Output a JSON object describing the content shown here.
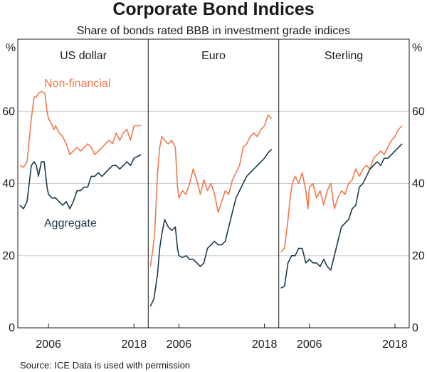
{
  "chart_data": {
    "type": "line",
    "title": "Corporate Bond Indices",
    "subtitle": "Share of bonds rated BBB in investment grade indices",
    "ylabel_left": "%",
    "ylabel_right": "%",
    "ylim": [
      0,
      80
    ],
    "yticks": [
      0,
      20,
      40,
      60
    ],
    "xlim": [
      2002.0,
      2019.7
    ],
    "xticks": [
      2006,
      2018
    ],
    "grid": true,
    "colors": {
      "Non-financial": "#f3784b",
      "Aggregate": "#1b3a4b"
    },
    "series_labels": {
      "nonfin": "Non-financial",
      "agg": "Aggregate"
    },
    "source": "Source:   ICE Data is used with permission",
    "panels": [
      {
        "title": "US dollar",
        "series": [
          {
            "name": "Non-financial",
            "x": [
              2002.0,
              2002.5,
              2003.0,
              2003.3,
              2003.6,
              2004.0,
              2004.3,
              2004.6,
              2005.0,
              2005.5,
              2005.8,
              2006.0,
              2006.3,
              2006.8,
              2007.0,
              2007.5,
              2008.0,
              2008.5,
              2009.0,
              2009.5,
              2010.0,
              2010.5,
              2011.0,
              2011.5,
              2012.0,
              2012.5,
              2013.0,
              2013.5,
              2014.0,
              2014.5,
              2015.0,
              2015.5,
              2016.0,
              2016.5,
              2017.0,
              2017.5,
              2018.0,
              2018.5,
              2019.0
            ],
            "y": [
              45,
              44.5,
              46,
              52,
              58,
              64,
              64,
              65,
              65.5,
              65,
              60,
              58,
              57,
              55,
              56,
              54,
              53,
              51,
              48,
              49,
              50,
              49,
              50,
              51,
              50,
              48,
              49,
              50,
              51,
              52,
              51,
              54,
              52,
              54,
              55,
              52,
              56,
              56,
              56
            ]
          },
          {
            "name": "Aggregate",
            "x": [
              2002.0,
              2002.5,
              2003.0,
              2003.3,
              2003.6,
              2004.0,
              2004.3,
              2004.6,
              2005.0,
              2005.4,
              2005.8,
              2006.0,
              2006.5,
              2007.0,
              2007.5,
              2008.0,
              2008.5,
              2009.0,
              2009.5,
              2010.0,
              2010.5,
              2011.0,
              2011.5,
              2012.0,
              2012.5,
              2013.0,
              2013.5,
              2014.0,
              2014.5,
              2015.0,
              2015.5,
              2016.0,
              2016.5,
              2017.0,
              2017.5,
              2018.0,
              2018.5,
              2019.0
            ],
            "y": [
              34,
              33,
              35,
              40,
              45,
              46,
              45,
              42,
              46,
              46,
              39,
              37,
              36,
              36,
              35,
              34,
              35,
              33,
              35,
              38,
              38,
              39,
              39,
              42,
              42,
              43,
              42,
              43,
              44,
              45,
              45,
              44,
              45,
              46,
              45,
              47,
              47.5,
              48
            ]
          }
        ]
      },
      {
        "title": "Euro",
        "series": [
          {
            "name": "Non-financial",
            "x": [
              2002.0,
              2002.3,
              2002.6,
              2003.0,
              2003.3,
              2003.6,
              2004.0,
              2004.5,
              2005.0,
              2005.5,
              2005.8,
              2006.0,
              2006.5,
              2007.0,
              2007.5,
              2008.0,
              2008.5,
              2009.0,
              2009.5,
              2010.0,
              2010.5,
              2011.0,
              2011.5,
              2012.0,
              2012.5,
              2013.0,
              2013.5,
              2014.0,
              2014.5,
              2015.0,
              2015.5,
              2016.0,
              2016.5,
              2017.0,
              2017.5,
              2018.0,
              2018.5,
              2019.0
            ],
            "y": [
              17,
              21,
              26,
              43,
              50,
              53,
              52,
              51,
              52,
              50,
              39,
              36,
              38,
              37,
              40,
              44,
              41,
              37,
              41,
              38,
              40,
              37,
              32,
              35,
              38,
              37,
              41,
              43,
              45,
              50,
              51,
              53,
              54,
              53,
              55,
              56,
              59,
              58
            ]
          },
          {
            "name": "Aggregate",
            "x": [
              2002.0,
              2002.5,
              2003.0,
              2003.3,
              2003.6,
              2004.0,
              2004.5,
              2005.0,
              2005.5,
              2005.8,
              2006.0,
              2006.5,
              2007.0,
              2007.5,
              2008.0,
              2008.5,
              2009.0,
              2009.5,
              2010.0,
              2010.5,
              2011.0,
              2011.5,
              2012.0,
              2012.5,
              2013.0,
              2013.5,
              2014.0,
              2014.5,
              2015.0,
              2015.5,
              2016.0,
              2016.5,
              2017.0,
              2017.5,
              2018.0,
              2018.5,
              2019.0
            ],
            "y": [
              6,
              8,
              15,
              22,
              26,
              30,
              28,
              27,
              28,
              22,
              20,
              19.5,
              20,
              19,
              19,
              18,
              17,
              18,
              22,
              23,
              24,
              23,
              23,
              24,
              28,
              32,
              36,
              38,
              40,
              42,
              43,
              44,
              45,
              46,
              47,
              48.5,
              49.5
            ]
          }
        ]
      },
      {
        "title": "Sterling",
        "series": [
          {
            "name": "Non-financial",
            "x": [
              2002.0,
              2002.5,
              2003.0,
              2003.3,
              2003.6,
              2004.0,
              2004.5,
              2005.0,
              2005.5,
              2005.8,
              2006.0,
              2006.5,
              2007.0,
              2007.5,
              2008.0,
              2008.5,
              2009.0,
              2009.5,
              2010.0,
              2010.5,
              2011.0,
              2011.5,
              2012.0,
              2012.5,
              2013.0,
              2013.5,
              2014.0,
              2014.5,
              2015.0,
              2015.5,
              2016.0,
              2016.5,
              2017.0,
              2017.5,
              2018.0,
              2018.5,
              2019.0
            ],
            "y": [
              21,
              22,
              30,
              36,
              40,
              42,
              40,
              43,
              38,
              33,
              39,
              40,
              36,
              38,
              34,
              38,
              40,
              33,
              36,
              38,
              37,
              40,
              41,
              44,
              42,
              44,
              45,
              44,
              47,
              48,
              49,
              48,
              50,
              52,
              53,
              55,
              56
            ]
          },
          {
            "name": "Aggregate",
            "x": [
              2002.0,
              2002.5,
              2003.0,
              2003.5,
              2004.0,
              2004.5,
              2005.0,
              2005.5,
              2006.0,
              2006.5,
              2007.0,
              2007.5,
              2008.0,
              2008.5,
              2009.0,
              2009.5,
              2010.0,
              2010.5,
              2011.0,
              2011.5,
              2012.0,
              2012.5,
              2013.0,
              2013.5,
              2014.0,
              2014.5,
              2015.0,
              2015.5,
              2016.0,
              2016.5,
              2017.0,
              2017.5,
              2018.0,
              2018.5,
              2019.0
            ],
            "y": [
              11,
              11.5,
              18,
              20,
              20,
              22,
              22,
              18,
              19,
              18,
              18,
              17,
              19,
              17,
              16,
              20,
              24,
              28,
              29,
              30,
              33,
              34,
              39,
              40,
              42,
              44,
              45,
              46,
              45,
              47,
              47,
              48,
              49,
              50,
              51
            ]
          }
        ]
      }
    ]
  }
}
